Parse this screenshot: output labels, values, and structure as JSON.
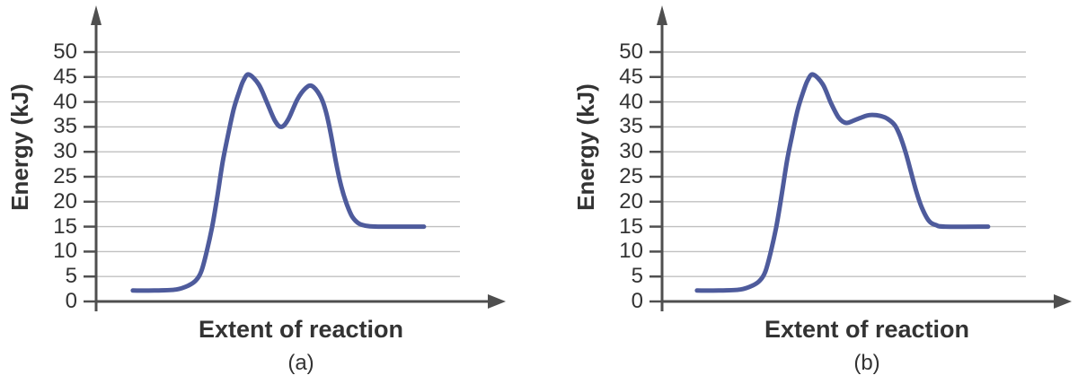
{
  "figure": {
    "background": "#ffffff"
  },
  "colors": {
    "curve": "#4e5b9c",
    "axis": "#4f4f4f",
    "grid": "#c0c0c0",
    "text": "#333333"
  },
  "chart_data": [
    {
      "type": "line",
      "sublabel": "(a)",
      "xlabel": "Extent of reaction",
      "ylabel": "Energy (kJ)",
      "ylim": [
        0,
        50
      ],
      "yticks": [
        0,
        5,
        10,
        15,
        20,
        25,
        30,
        35,
        40,
        45,
        50
      ],
      "grid": "horizontal-only",
      "legend": "none",
      "axis_arrows": true,
      "key_values": {
        "reactant_energy_kJ": 2.2,
        "first_peak_kJ": 45.5,
        "intermediate_valley_kJ": 35,
        "second_peak_kJ": 43.2,
        "product_energy_kJ": 15
      },
      "curve": [
        [
          0.101,
          2.2
        ],
        [
          0.16,
          2.2
        ],
        [
          0.22,
          2.4
        ],
        [
          0.254,
          3.2
        ],
        [
          0.274,
          4.2
        ],
        [
          0.289,
          6.0
        ],
        [
          0.304,
          10.0
        ],
        [
          0.319,
          15.0
        ],
        [
          0.333,
          21.0
        ],
        [
          0.348,
          28.0
        ],
        [
          0.363,
          33.5
        ],
        [
          0.378,
          38.5
        ],
        [
          0.393,
          42.0
        ],
        [
          0.405,
          44.3
        ],
        [
          0.42,
          45.5
        ],
        [
          0.447,
          43.5
        ],
        [
          0.469,
          40.0
        ],
        [
          0.491,
          36.3
        ],
        [
          0.509,
          35.0
        ],
        [
          0.528,
          36.5
        ],
        [
          0.553,
          40.5
        ],
        [
          0.575,
          42.7
        ],
        [
          0.593,
          43.2
        ],
        [
          0.615,
          41.3
        ],
        [
          0.63,
          38.5
        ],
        [
          0.644,
          34.0
        ],
        [
          0.659,
          28.0
        ],
        [
          0.674,
          23.0
        ],
        [
          0.689,
          19.5
        ],
        [
          0.704,
          17.0
        ],
        [
          0.723,
          15.6
        ],
        [
          0.748,
          15.1
        ],
        [
          0.785,
          15.0
        ],
        [
          0.901,
          15.0
        ]
      ]
    },
    {
      "type": "line",
      "sublabel": "(b)",
      "xlabel": "Extent of reaction",
      "ylabel": "Energy (kJ)",
      "ylim": [
        0,
        50
      ],
      "yticks": [
        0,
        5,
        10,
        15,
        20,
        25,
        30,
        35,
        40,
        45,
        50
      ],
      "grid": "horizontal-only",
      "legend": "none",
      "axis_arrows": true,
      "key_values": {
        "reactant_energy_kJ": 2.2,
        "first_peak_kJ": 45.5,
        "intermediate_valley_kJ": 35.8,
        "second_peak_kJ": 37.4,
        "product_energy_kJ": 15
      },
      "curve": [
        [
          0.096,
          2.2
        ],
        [
          0.156,
          2.2
        ],
        [
          0.215,
          2.4
        ],
        [
          0.249,
          3.2
        ],
        [
          0.269,
          4.2
        ],
        [
          0.284,
          6.0
        ],
        [
          0.299,
          10.0
        ],
        [
          0.314,
          15.0
        ],
        [
          0.328,
          21.0
        ],
        [
          0.343,
          28.0
        ],
        [
          0.358,
          33.5
        ],
        [
          0.373,
          38.5
        ],
        [
          0.388,
          42.0
        ],
        [
          0.4,
          44.3
        ],
        [
          0.415,
          45.5
        ],
        [
          0.442,
          43.5
        ],
        [
          0.464,
          39.8
        ],
        [
          0.486,
          36.8
        ],
        [
          0.506,
          35.8
        ],
        [
          0.531,
          36.4
        ],
        [
          0.556,
          37.1
        ],
        [
          0.575,
          37.4
        ],
        [
          0.6,
          37.2
        ],
        [
          0.62,
          36.6
        ],
        [
          0.64,
          35.3
        ],
        [
          0.654,
          33.2
        ],
        [
          0.669,
          30.0
        ],
        [
          0.684,
          26.0
        ],
        [
          0.699,
          22.0
        ],
        [
          0.714,
          18.8
        ],
        [
          0.733,
          16.2
        ],
        [
          0.753,
          15.3
        ],
        [
          0.778,
          15.0
        ],
        [
          0.896,
          15.0
        ]
      ]
    }
  ]
}
